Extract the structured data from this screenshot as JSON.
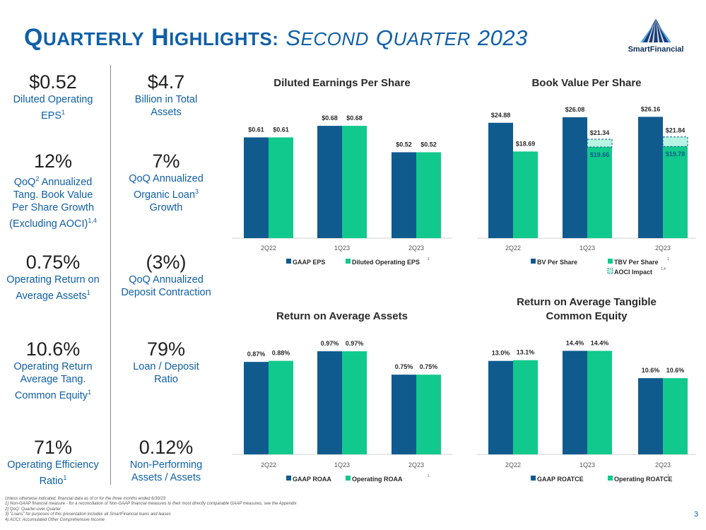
{
  "page": {
    "title_q": "Q",
    "title_uarterly": "UARTERLY",
    "title_h": "H",
    "title_ighlights": "IGHLIGHTS:",
    "title_s": "S",
    "title_econd": "ECOND",
    "title_q2": "Q",
    "title_uarter": "UARTER",
    "title_year": "2023",
    "logo_text": "SmartFinancial",
    "page_number": "3",
    "colors": {
      "accent": "#0f5fa8",
      "navy": "#0f5b8e",
      "green": "#11c98c",
      "teal_light": "#b7f4e3"
    }
  },
  "kpis": {
    "left": [
      {
        "value": "$0.52",
        "lines": [
          "Diluted Operating",
          "EPS"
        ],
        "sup": "1"
      },
      {
        "value": "12%",
        "lines": [
          "QoQ",
          "Annualized",
          "Tang. Book Value",
          "Per Share Growth",
          "(Excluding AOCI)"
        ],
        "sup_qoq": "2",
        "sup": "1,4"
      },
      {
        "value": "0.75%",
        "lines": [
          "Operating Return on",
          "Average Assets"
        ],
        "sup": "1"
      },
      {
        "value": "10.6%",
        "lines": [
          "Operating Return",
          "Average Tang.",
          "Common Equity"
        ],
        "sup": "1"
      },
      {
        "value": "71%",
        "lines": [
          "Operating Efficiency",
          "Ratio"
        ],
        "sup": "1"
      }
    ],
    "right": [
      {
        "value": "$4.7",
        "lines": [
          "Billion in Total",
          "Assets"
        ]
      },
      {
        "value": "7%",
        "lines": [
          "QoQ Annualized",
          "Organic Loan",
          "Growth"
        ],
        "sup": "3"
      },
      {
        "value": "(3%)",
        "lines": [
          "QoQ Annualized",
          "Deposit Contraction"
        ]
      },
      {
        "value": "79%",
        "lines": [
          "Loan / Deposit",
          "Ratio"
        ]
      },
      {
        "value": "0.12%",
        "lines": [
          "Non-Performing",
          "Assets / Assets"
        ]
      }
    ]
  },
  "chart_data": [
    {
      "type": "bar",
      "title": "Diluted Earnings Per Share",
      "categories": [
        "2Q22",
        "1Q23",
        "2Q23"
      ],
      "series": [
        {
          "name": "GAAP EPS",
          "values": [
            0.61,
            0.68,
            0.52
          ],
          "labels": [
            "$0.61",
            "$0.68",
            "$0.52"
          ]
        },
        {
          "name": "Diluted Operating EPS",
          "values": [
            0.61,
            0.68,
            0.52
          ],
          "labels": [
            "$0.61",
            "$0.68",
            "$0.52"
          ]
        }
      ],
      "legend_sup": "1",
      "ylim": [
        0,
        0.8
      ]
    },
    {
      "type": "bar",
      "title": "Book Value Per Share",
      "categories": [
        "2Q22",
        "1Q23",
        "2Q23"
      ],
      "series": [
        {
          "name": "BV Per Share",
          "values": [
            24.88,
            26.08,
            26.16
          ],
          "labels": [
            "$24.88",
            "$26.08",
            "$26.16"
          ]
        },
        {
          "name": "TBV Per Share",
          "values": [
            18.69,
            19.66,
            19.78
          ],
          "labels": [
            "$18.69",
            "$19.66",
            "$19.78"
          ]
        },
        {
          "name": "AOCI Impact",
          "values": [
            null,
            21.34,
            21.84
          ],
          "labels": [
            "",
            "$21.34",
            "$21.84"
          ],
          "stacked_top_of": "TBV Per Share"
        }
      ],
      "legend_sup": "1",
      "legend_sup_aoci": "1,4",
      "ylim": [
        0,
        28.5
      ]
    },
    {
      "type": "bar",
      "title": "Return on Average Assets",
      "categories": [
        "2Q22",
        "1Q23",
        "2Q23"
      ],
      "series": [
        {
          "name": "GAAP ROAA",
          "values": [
            0.87,
            0.97,
            0.75
          ],
          "labels": [
            "0.87%",
            "0.97%",
            "0.75%"
          ]
        },
        {
          "name": "Operating ROAA",
          "values": [
            0.88,
            0.97,
            0.75
          ],
          "labels": [
            "0.88%",
            "0.97%",
            "0.75%"
          ]
        }
      ],
      "legend_sup": "1",
      "ylim": [
        0,
        1.15
      ]
    },
    {
      "type": "bar",
      "title": [
        "Return on Average Tangible",
        "Common Equity"
      ],
      "categories": [
        "2Q22",
        "1Q23",
        "2Q23"
      ],
      "series": [
        {
          "name": "GAAP ROATCE",
          "values": [
            13.0,
            14.4,
            10.6
          ],
          "labels": [
            "13.0%",
            "14.4%",
            "10.6%"
          ]
        },
        {
          "name": "Operating ROATCE",
          "values": [
            13.1,
            14.4,
            10.6
          ],
          "labels": [
            "13.1%",
            "14.4%",
            "10.6%"
          ]
        }
      ],
      "legend_sup": "1",
      "ylim": [
        0,
        17
      ]
    }
  ],
  "footnotes": [
    "Unless otherwise indicated, financial data as of or for the three months ended 6/30/23",
    "1)    Non-GAAP financial measure - for a reconciliation of Non-GAAP financial measures to their most directly comparable GAAP measures, see the Appendix",
    "2)    QoQ: Quarter-over-Quarter",
    "3)    \"Loans\" for purposes of this presentation includes all SmartFinancial loans and leases",
    "4)    AOCI: Accumulated Other Comprehensive Income"
  ]
}
